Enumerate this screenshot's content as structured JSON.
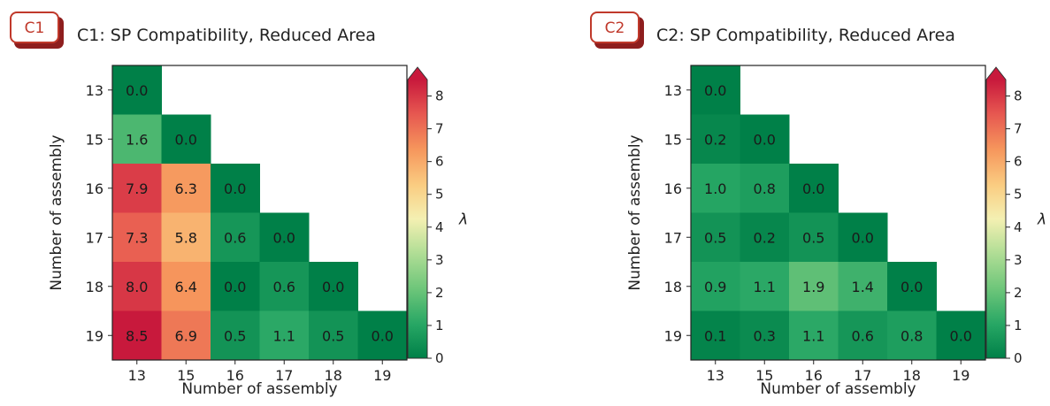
{
  "chart_data": [
    {
      "type": "heatmap",
      "badge": "C1",
      "title": "C1: SP Compatibility, Reduced Area",
      "xlabel": "Number of assembly",
      "ylabel": "Number of assembly",
      "x_categories": [
        "13",
        "15",
        "16",
        "17",
        "18",
        "19"
      ],
      "y_categories": [
        "13",
        "15",
        "16",
        "17",
        "18",
        "19"
      ],
      "values": [
        [
          0.0,
          null,
          null,
          null,
          null,
          null
        ],
        [
          1.6,
          0.0,
          null,
          null,
          null,
          null
        ],
        [
          7.9,
          6.3,
          0.0,
          null,
          null,
          null
        ],
        [
          7.3,
          5.8,
          0.6,
          0.0,
          null,
          null
        ],
        [
          8.0,
          6.4,
          0.0,
          0.6,
          0.0,
          null
        ],
        [
          8.5,
          6.9,
          0.5,
          1.1,
          0.5,
          0.0
        ]
      ],
      "colorbar": {
        "label": "λ",
        "min": 0,
        "max": 8.5,
        "ticks": [
          "0",
          "1",
          "2",
          "3",
          "4",
          "5",
          "6",
          "7",
          "8"
        ]
      },
      "colormap": "green-yellow-red"
    },
    {
      "type": "heatmap",
      "badge": "C2",
      "title": "C2: SP Compatibility, Reduced Area",
      "xlabel": "Number of assembly",
      "ylabel": "Number of assembly",
      "x_categories": [
        "13",
        "15",
        "16",
        "17",
        "18",
        "19"
      ],
      "y_categories": [
        "13",
        "15",
        "16",
        "17",
        "18",
        "19"
      ],
      "values": [
        [
          0.0,
          null,
          null,
          null,
          null,
          null
        ],
        [
          0.2,
          0.0,
          null,
          null,
          null,
          null
        ],
        [
          1.0,
          0.8,
          0.0,
          null,
          null,
          null
        ],
        [
          0.5,
          0.2,
          0.5,
          0.0,
          null,
          null
        ],
        [
          0.9,
          1.1,
          1.9,
          1.4,
          0.0,
          null
        ],
        [
          0.1,
          0.3,
          1.1,
          0.6,
          0.8,
          0.0
        ]
      ],
      "colorbar": {
        "label": "λ",
        "min": 0,
        "max": 8.5,
        "ticks": [
          "0",
          "1",
          "2",
          "3",
          "4",
          "5",
          "6",
          "7",
          "8"
        ]
      },
      "colormap": "green-yellow-red"
    }
  ],
  "colors": {
    "badge_text": "#c0392b",
    "badge_border": "#c0392b",
    "badge_shadow": "#8e1e1e"
  }
}
